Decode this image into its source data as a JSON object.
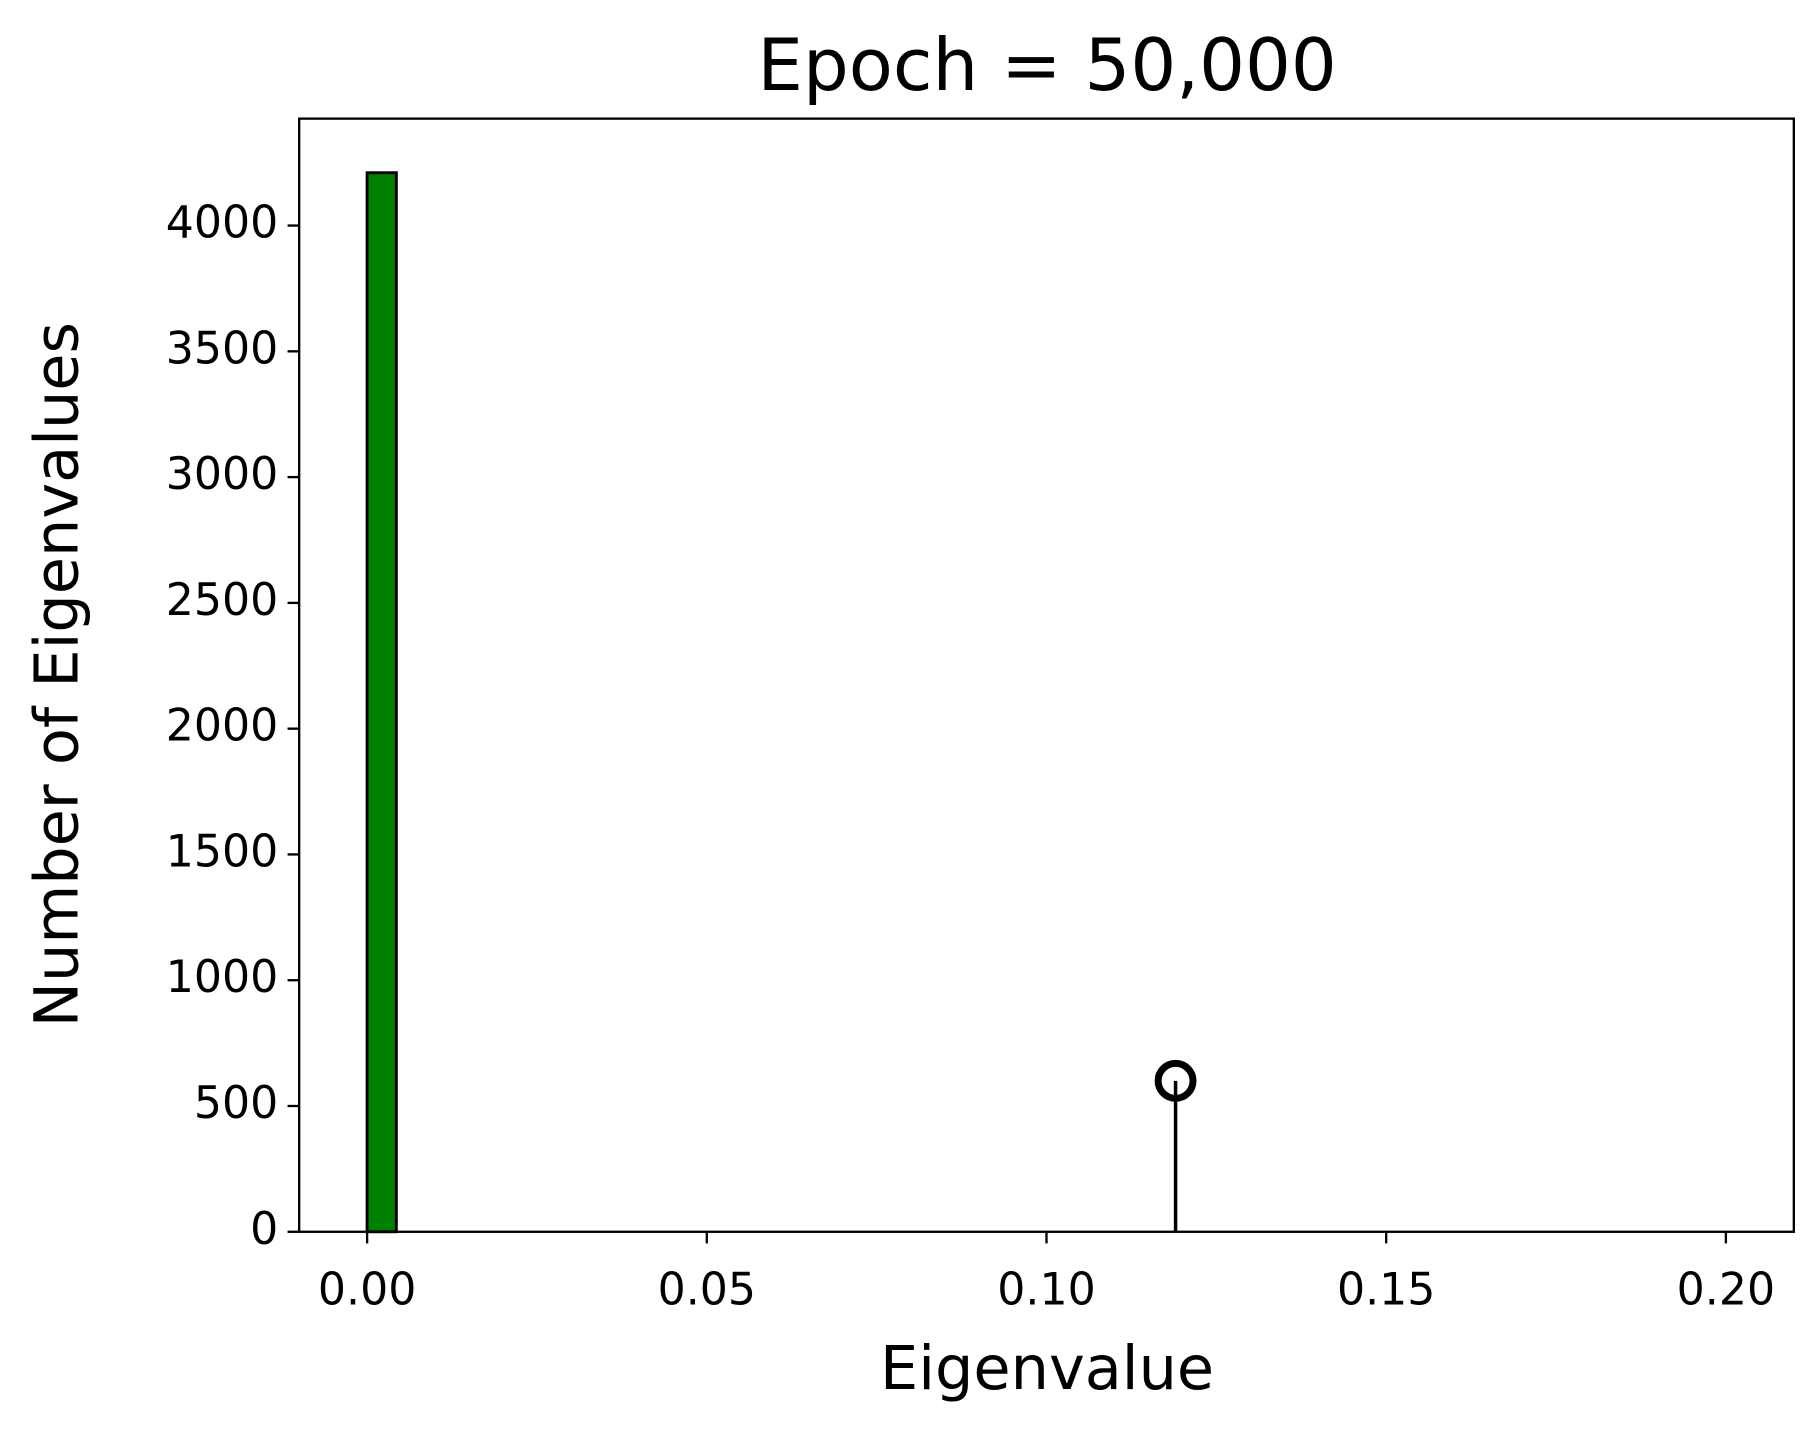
{
  "chart_data": {
    "type": "histogram",
    "title": "Epoch = 50,000",
    "x_label": "Eigenvalue",
    "y_label": "Number of Eigenvalues",
    "bins": [
      0,
      0.0043
    ],
    "counts": [
      4210
    ],
    "color": "#008000",
    "edgecolor": "#000000",
    "stem": {
      "x": [
        0.119
      ],
      "values": [
        600
      ],
      "color": "#000000"
    },
    "xlim": [
      -0.01,
      0.21
    ],
    "ylim": [
      0,
      4425
    ],
    "xticks": [
      {
        "value": 0,
        "label": "0.00"
      },
      {
        "value": 0.05,
        "label": "0.05"
      },
      {
        "value": 0.1,
        "label": "0.10"
      },
      {
        "value": 0.15,
        "label": "0.15"
      },
      {
        "value": 0.2,
        "label": "0.20"
      }
    ],
    "yticks": [
      0,
      500,
      1000,
      1500,
      2000,
      2500,
      3000,
      3500,
      4000
    ]
  }
}
